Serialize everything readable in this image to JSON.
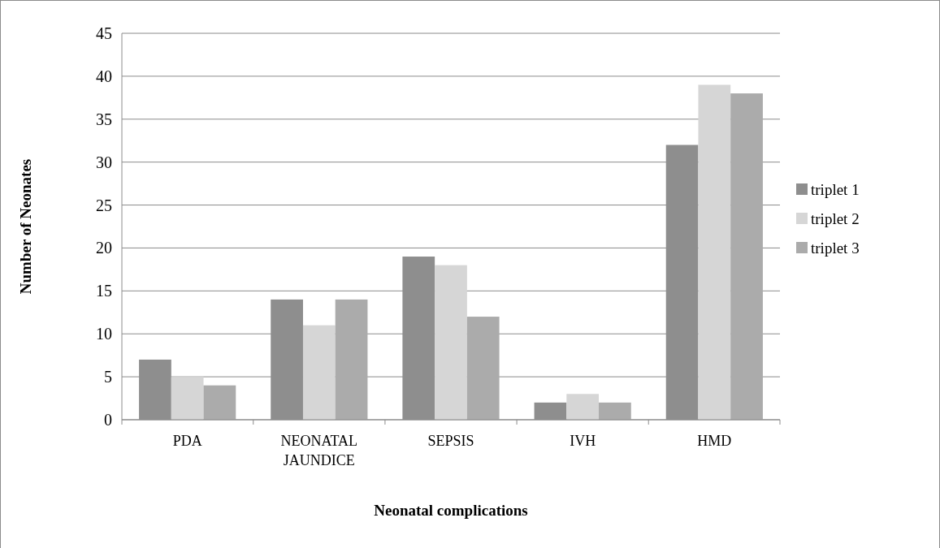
{
  "chart_data": {
    "type": "bar",
    "xlabel": "Neonatal complications",
    "ylabel": "Number of Neonates",
    "categories": [
      "PDA",
      "NEONATAL JAUNDICE",
      "SEPSIS",
      "IVH",
      "HMD"
    ],
    "series": [
      {
        "name": "triplet 1",
        "color": "#8e8e8e",
        "values": [
          7,
          14,
          19,
          2,
          32
        ]
      },
      {
        "name": "triplet 2",
        "color": "#d6d6d6",
        "values": [
          5,
          11,
          18,
          3,
          39
        ]
      },
      {
        "name": "triplet 3",
        "color": "#ababab",
        "values": [
          4,
          14,
          12,
          2,
          38
        ]
      }
    ],
    "ylim": [
      0,
      45
    ],
    "yticks": [
      0,
      5,
      10,
      15,
      20,
      25,
      30,
      35,
      40,
      45
    ],
    "grid": "y",
    "legend": "right"
  }
}
